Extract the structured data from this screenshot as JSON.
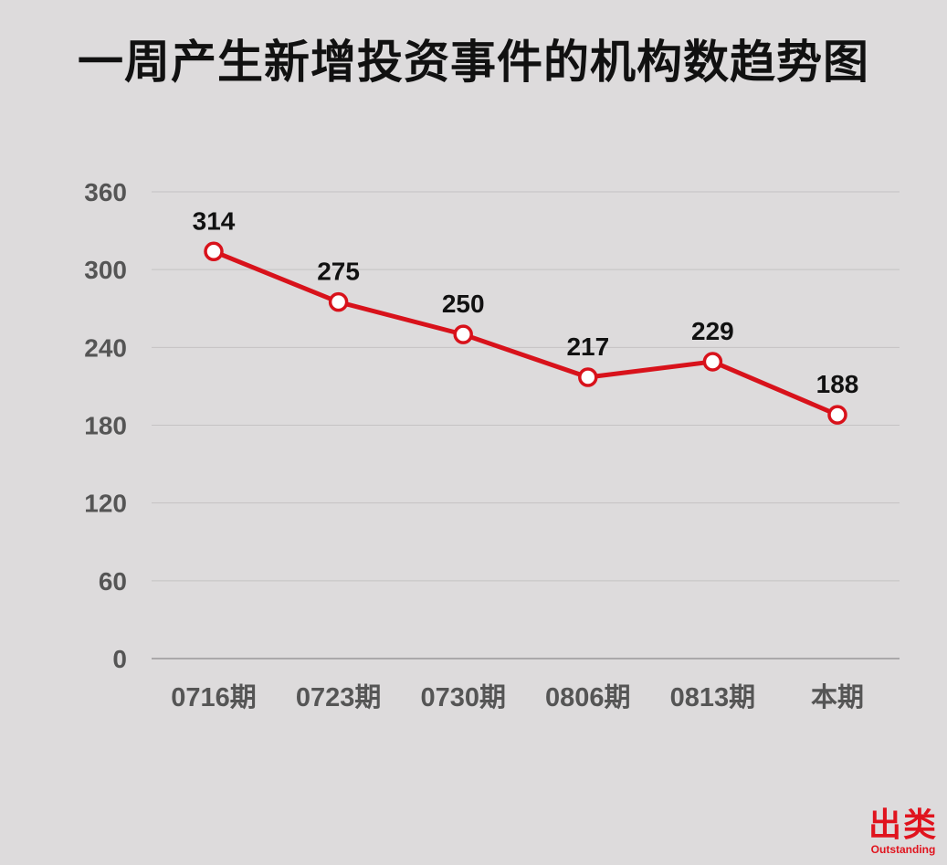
{
  "chart_data": {
    "type": "line",
    "title": "一周产生新增投资事件的机构数趋势图",
    "categories": [
      "0716期",
      "0723期",
      "0730期",
      "0806期",
      "0813期",
      "本期"
    ],
    "values": [
      314,
      275,
      250,
      217,
      229,
      188
    ],
    "data_labels": [
      "314",
      "275",
      "250",
      "217",
      "229",
      "188"
    ],
    "ylim": [
      0,
      360
    ],
    "yticks": [
      0,
      60,
      120,
      180,
      240,
      300,
      360
    ],
    "grid": true,
    "legend": "none",
    "colors": {
      "line": "#d8121b",
      "marker_fill": "#ffffff",
      "grid": "#c4c2c3",
      "axis": "#9a9899"
    }
  },
  "logo": {
    "cn": "出类",
    "en": "Outstanding"
  }
}
